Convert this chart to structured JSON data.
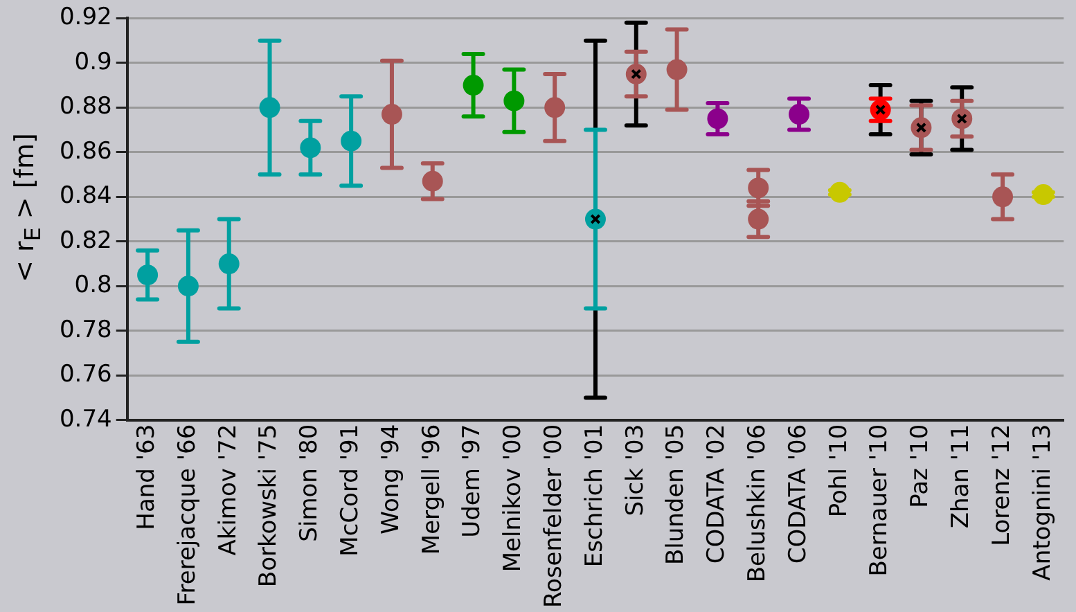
{
  "chart_data": {
    "type": "scatter",
    "ylabel": "< r$_{E}$ > [fm]",
    "categories": [
      "Hand '63",
      "Frerejacque '66",
      "Akimov '72",
      "Borkowski '75",
      "Simon '80",
      "McCord '91",
      "Wong '94",
      "Mergell '96",
      "Udem '97",
      "Melnikov '00",
      "Rosenfelder '00",
      "Eschrich '01",
      "Sick '03",
      "Blunden '05",
      "CODATA '02",
      "Belushkin '06",
      "CODATA '06",
      "Pohl '10",
      "Bernauer '10",
      "Paz '10",
      "Zhan '11",
      "Lorenz '12",
      "Antognini '13"
    ],
    "ylim": [
      0.74,
      0.92
    ],
    "yticks": [
      0.74,
      0.76,
      0.78,
      0.8,
      0.82,
      0.84,
      0.86,
      0.88,
      0.9,
      0.92
    ],
    "grid": "y",
    "legend": false,
    "marker": "circle",
    "series": [
      {
        "color": "#000000",
        "marker": "cross",
        "values": [
          null,
          null,
          null,
          null,
          null,
          null,
          null,
          null,
          null,
          null,
          null,
          0.83,
          0.895,
          null,
          null,
          null,
          null,
          null,
          0.879,
          0.871,
          0.875,
          null,
          null
        ],
        "errors": [
          null,
          null,
          null,
          null,
          null,
          null,
          null,
          null,
          null,
          null,
          null,
          0.08,
          0.023,
          null,
          null,
          null,
          null,
          null,
          0.011,
          0.012,
          0.014,
          null,
          null
        ]
      },
      {
        "color": "#00a0a0",
        "values": [
          0.805,
          0.8,
          0.81,
          0.88,
          0.862,
          0.865,
          null,
          null,
          null,
          null,
          null,
          0.83,
          null,
          null,
          null,
          null,
          null,
          null,
          null,
          null,
          null,
          null,
          null
        ],
        "errors": [
          0.011,
          0.025,
          0.02,
          0.03,
          0.012,
          0.02,
          null,
          null,
          null,
          null,
          null,
          0.04,
          null,
          null,
          null,
          null,
          null,
          null,
          null,
          null,
          null,
          null,
          null
        ]
      },
      {
        "color": "#a85555",
        "values": [
          null,
          null,
          null,
          null,
          null,
          null,
          0.877,
          0.847,
          null,
          null,
          0.88,
          null,
          0.895,
          0.897,
          null,
          0.844,
          null,
          null,
          null,
          0.871,
          0.875,
          0.84,
          null
        ],
        "errors": [
          null,
          null,
          null,
          null,
          null,
          null,
          0.024,
          0.008,
          null,
          null,
          0.015,
          null,
          0.01,
          0.018,
          null,
          0.008,
          null,
          null,
          null,
          0.01,
          0.008,
          0.01,
          null
        ]
      },
      {
        "color": "#a85555",
        "values": [
          null,
          null,
          null,
          null,
          null,
          null,
          null,
          null,
          null,
          null,
          null,
          null,
          null,
          null,
          null,
          0.83,
          null,
          null,
          null,
          null,
          null,
          null,
          null
        ],
        "errors": [
          null,
          null,
          null,
          null,
          null,
          null,
          null,
          null,
          null,
          null,
          null,
          null,
          null,
          null,
          null,
          0.008,
          null,
          null,
          null,
          null,
          null,
          null,
          null
        ]
      },
      {
        "color": "#009900",
        "values": [
          null,
          null,
          null,
          null,
          null,
          null,
          null,
          null,
          0.89,
          0.883,
          null,
          null,
          null,
          null,
          null,
          null,
          null,
          null,
          null,
          null,
          null,
          null,
          null
        ],
        "errors": [
          null,
          null,
          null,
          null,
          null,
          null,
          null,
          null,
          0.014,
          0.014,
          null,
          null,
          null,
          null,
          null,
          null,
          null,
          null,
          null,
          null,
          null,
          null,
          null
        ]
      },
      {
        "color": "#8b008b",
        "values": [
          null,
          null,
          null,
          null,
          null,
          null,
          null,
          null,
          null,
          null,
          null,
          null,
          null,
          null,
          0.875,
          null,
          0.877,
          null,
          null,
          null,
          null,
          null,
          null
        ],
        "errors": [
          null,
          null,
          null,
          null,
          null,
          null,
          null,
          null,
          null,
          null,
          null,
          null,
          null,
          null,
          0.007,
          null,
          0.007,
          null,
          null,
          null,
          null,
          null,
          null
        ]
      },
      {
        "color": "#c8c800",
        "values": [
          null,
          null,
          null,
          null,
          null,
          null,
          null,
          null,
          null,
          null,
          null,
          null,
          null,
          null,
          null,
          null,
          null,
          0.842,
          null,
          null,
          null,
          null,
          0.841
        ],
        "errors": [
          null,
          null,
          null,
          null,
          null,
          null,
          null,
          null,
          null,
          null,
          null,
          null,
          null,
          null,
          null,
          null,
          null,
          0.001,
          null,
          null,
          null,
          null,
          0.001
        ]
      },
      {
        "color": "#ff0000",
        "values": [
          null,
          null,
          null,
          null,
          null,
          null,
          null,
          null,
          null,
          null,
          null,
          null,
          null,
          null,
          null,
          null,
          null,
          null,
          0.879,
          null,
          null,
          null,
          null
        ],
        "errors": [
          null,
          null,
          null,
          null,
          null,
          null,
          null,
          null,
          null,
          null,
          null,
          null,
          null,
          null,
          null,
          null,
          null,
          null,
          0.005,
          null,
          null,
          null,
          null
        ]
      }
    ]
  }
}
